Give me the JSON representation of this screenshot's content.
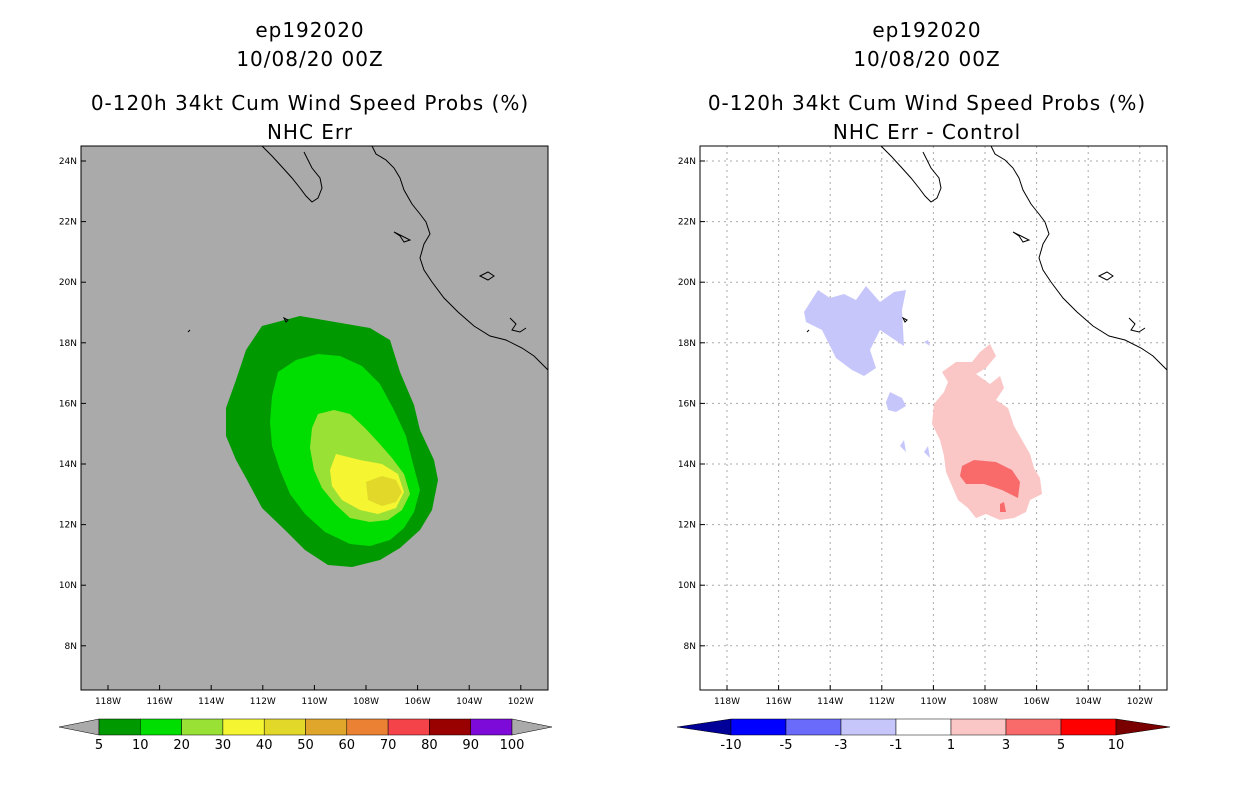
{
  "left_panel": {
    "storm_id": "ep192020",
    "datetime": "10/08/20 00Z",
    "title": "0-120h 34kt Cum Wind Speed Probs (%)",
    "subtitle": "NHC Err",
    "lat_labels": [
      "24N",
      "22N",
      "20N",
      "18N",
      "16N",
      "14N",
      "12N",
      "10N",
      "8N"
    ],
    "lon_labels": [
      "118W",
      "116W",
      "114W",
      "112W",
      "110W",
      "108W",
      "106W",
      "104W",
      "102W"
    ],
    "colorbar": {
      "labels": [
        "5",
        "10",
        "20",
        "30",
        "40",
        "50",
        "60",
        "70",
        "80",
        "90",
        "100"
      ],
      "colors": [
        "#009900",
        "#00dd00",
        "#99e135",
        "#f5f532",
        "#e1d82a",
        "#e0a52b",
        "#eb8233",
        "#f5434a",
        "#990000",
        "#7d0ad9"
      ],
      "under_color": "#aaaaaa",
      "over_color": "#aaaaaa"
    },
    "background_color": "#aaaaaa"
  },
  "right_panel": {
    "storm_id": "ep192020",
    "datetime": "10/08/20 00Z",
    "title": "0-120h 34kt Cum Wind Speed Probs (%)",
    "subtitle": "NHC Err - Control",
    "lat_labels": [
      "24N",
      "22N",
      "20N",
      "18N",
      "16N",
      "14N",
      "12N",
      "10N",
      "8N"
    ],
    "lon_labels": [
      "118W",
      "116W",
      "114W",
      "112W",
      "110W",
      "108W",
      "106W",
      "104W",
      "102W"
    ],
    "colorbar": {
      "labels": [
        "-10",
        "-5",
        "-3",
        "-1",
        "1",
        "3",
        "5",
        "10"
      ],
      "colors": [
        "#0000ff",
        "#6b6bfb",
        "#c6c6fb",
        "#ffffff",
        "#fbc6c6",
        "#f96b6b",
        "#ff0000"
      ],
      "under_color": "#000099",
      "over_color": "#7a0000"
    }
  }
}
